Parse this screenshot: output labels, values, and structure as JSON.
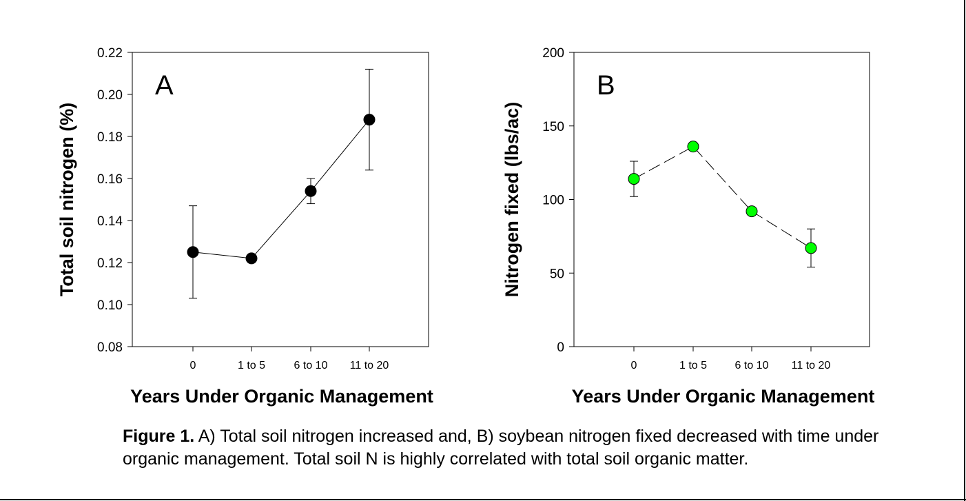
{
  "chart_data": [
    {
      "type": "line",
      "panel_label": "A",
      "categories": [
        "0",
        "1 to 5",
        "6 to 10",
        "11 to 20"
      ],
      "series": [
        {
          "values": [
            0.125,
            0.122,
            0.154,
            0.188
          ],
          "error": [
            0.022,
            null,
            0.006,
            0.024
          ],
          "color": "#000000",
          "line_style": "solid"
        }
      ],
      "xlabel": "Years Under Organic Management",
      "ylabel": "Total soil nitrogen (%)",
      "ylim": [
        0.08,
        0.22
      ],
      "yticks": [
        "0.08",
        "0.10",
        "0.12",
        "0.14",
        "0.16",
        "0.18",
        "0.20",
        "0.22"
      ],
      "grid": false
    },
    {
      "type": "line",
      "panel_label": "B",
      "categories": [
        "0",
        "1 to 5",
        "6 to 10",
        "11 to 20"
      ],
      "series": [
        {
          "values": [
            114,
            136,
            92,
            67
          ],
          "error": [
            12,
            null,
            null,
            13
          ],
          "color": "#00ff00",
          "line_style": "dashed"
        }
      ],
      "xlabel": "Years Under Organic Management",
      "ylabel": "Nitrogen fixed (lbs/ac)",
      "ylim": [
        0,
        200
      ],
      "yticks": [
        "0",
        "50",
        "100",
        "150",
        "200"
      ],
      "grid": false
    }
  ],
  "caption": {
    "label": "Figure 1.",
    "text": " A) Total soil nitrogen increased and, B) soybean nitrogen fixed decreased with time under organic management. Total soil N is highly correlated with total soil organic matter."
  }
}
